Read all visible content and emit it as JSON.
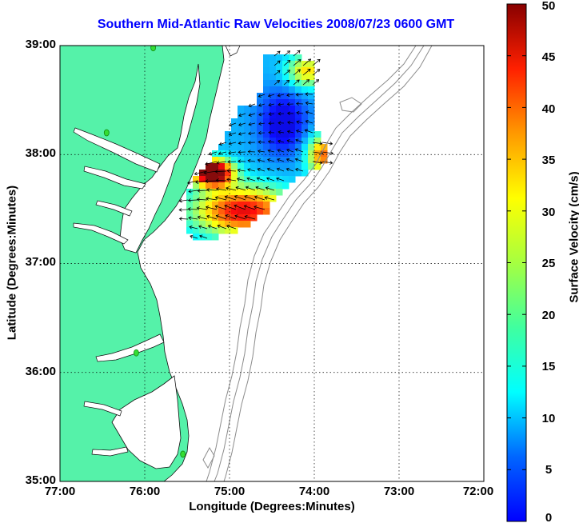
{
  "map": {
    "title": "Southern Mid-Atlantic Raw Velocities 2008/07/23 0600 GMT",
    "xlabel": "Longitude (Degrees:Minutes)",
    "ylabel": "Latitude (Degrees:Minutes)",
    "x_ticks": [
      "77:00",
      "76:00",
      "75:00",
      "74:00",
      "73:00",
      "72:00"
    ],
    "y_ticks": [
      "39:00",
      "38:00",
      "37:00",
      "36:00",
      "35:00"
    ],
    "lon_range": [
      -77,
      -72
    ],
    "lat_range": [
      35,
      39
    ],
    "grid": "dotted",
    "land_color": "#55f2a9",
    "bathymetry_color": "#8c8c8c",
    "station_color": "#33dd33"
  },
  "colorbar": {
    "label": "Surface Velocity (cm/s)",
    "ticks": [
      "50",
      "45",
      "40",
      "35",
      "30",
      "25",
      "20",
      "15",
      "10",
      "5",
      "0"
    ],
    "range": [
      0,
      50
    ],
    "colormap": "jet"
  },
  "stations": [
    {
      "lon": -75.9,
      "lat": 38.98
    },
    {
      "lon": -76.45,
      "lat": 38.2
    },
    {
      "lon": -76.1,
      "lat": 36.18
    },
    {
      "lon": -75.55,
      "lat": 35.25
    }
  ]
}
